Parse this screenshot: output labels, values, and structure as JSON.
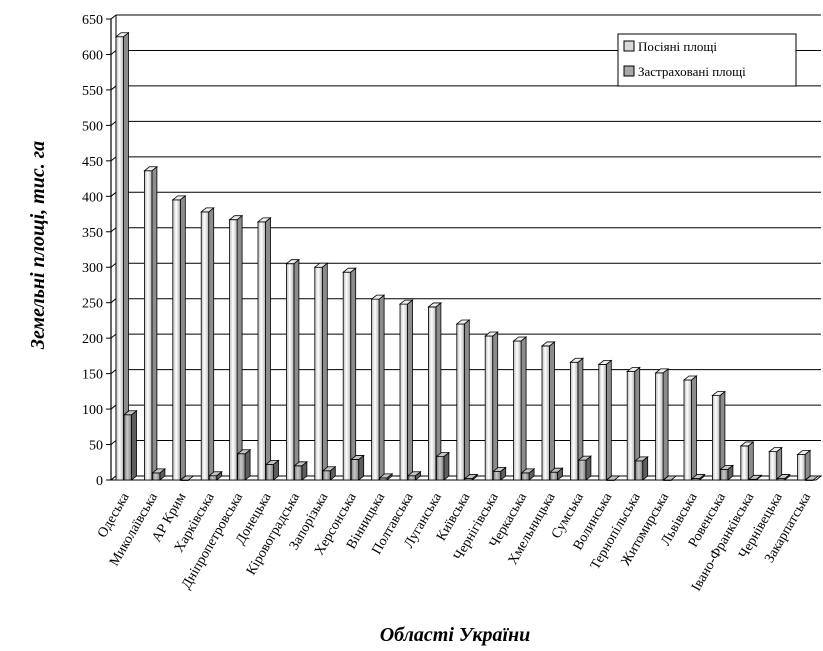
{
  "chart_data": {
    "type": "bar",
    "title": "",
    "xlabel": "Області України",
    "ylabel": "Земельні площі, тис. га",
    "ylim": [
      0,
      650
    ],
    "yticks": [
      0,
      50,
      100,
      150,
      200,
      250,
      300,
      350,
      400,
      450,
      500,
      550,
      600,
      650
    ],
    "grid": "horizontal",
    "legend_position": "top-right",
    "categories": [
      "Одеська",
      "Миколаївська",
      "АР Крим",
      "Харківська",
      "Дніпропетровська",
      "Донецька",
      "Кіровоградська",
      "Запорізька",
      "Херсонська",
      "Вінницька",
      "Полтавська",
      "Луганська",
      "Київська",
      "Чернігівська",
      "Черкаська",
      "Хмельницька",
      "Сумська",
      "Волинська",
      "Тернопільська",
      "Житомирська",
      "Львівська",
      "Ровенська",
      "Івано-Франківська",
      "Чернівецька",
      "Закарпатська"
    ],
    "series": [
      {
        "name": "Посіяні площі",
        "color": "#d9d9d9",
        "values": [
          625,
          436,
          395,
          378,
          367,
          364,
          305,
          300,
          293,
          255,
          248,
          244,
          220,
          203,
          196,
          189,
          166,
          163,
          153,
          151,
          141,
          119,
          48,
          40,
          36
        ]
      },
      {
        "name": "Застраховані площі",
        "color": "#a8a8a8",
        "values": [
          92,
          10,
          0,
          6,
          37,
          22,
          20,
          13,
          29,
          3,
          6,
          33,
          2,
          12,
          10,
          11,
          28,
          0,
          27,
          0,
          2,
          15,
          1,
          2,
          0
        ]
      }
    ]
  }
}
